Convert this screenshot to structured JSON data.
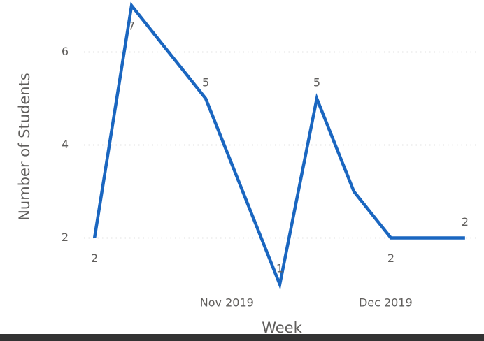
{
  "chart_data": {
    "type": "line",
    "x_label": "Week",
    "y_label": "Number of Students",
    "x": [
      "2019-10-07",
      "2019-10-14",
      "2019-10-28",
      "2019-11-11",
      "2019-11-18",
      "2019-11-25",
      "2019-12-02",
      "2019-12-16"
    ],
    "series": [
      {
        "name": "Number of Students",
        "color": "#1a66c0",
        "values": [
          2,
          7,
          5,
          1,
          5,
          3,
          2,
          2
        ],
        "value_labels": [
          "2",
          "7",
          "5",
          "1",
          "5",
          null,
          "2",
          "2"
        ]
      }
    ],
    "xlim": [
      "2019-10-05",
      "2019-12-18"
    ],
    "xticks": [
      {
        "value": "2019-11-01",
        "label": "Nov 2019"
      },
      {
        "value": "2019-12-01",
        "label": "Dec 2019"
      }
    ],
    "ylim": [
      0.85,
      7.15
    ],
    "yticks": [
      2,
      4,
      6
    ],
    "grid": true
  }
}
